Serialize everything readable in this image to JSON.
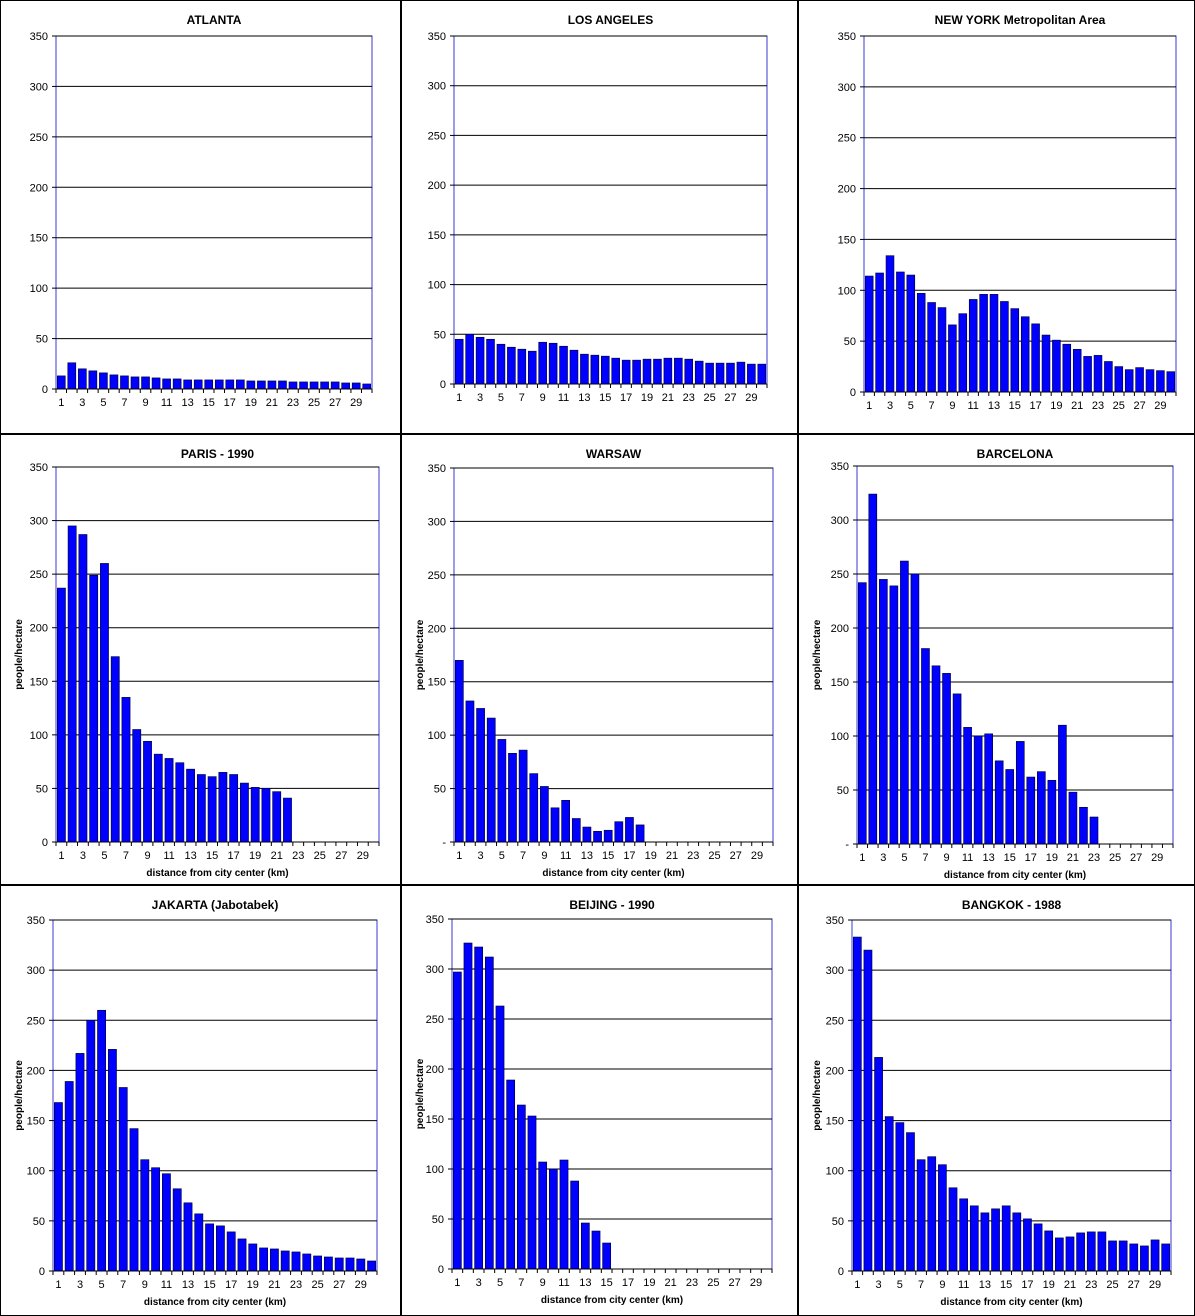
{
  "chart_data": [
    {
      "type": "bar",
      "title": "ATLANTA",
      "xlabel": "",
      "ylabel": "",
      "ylim": [
        0,
        350
      ],
      "yticks": [
        "0",
        "50",
        "100",
        "150",
        "200",
        "250",
        "300",
        "350"
      ],
      "x_tick_labels": [
        "1",
        "3",
        "5",
        "7",
        "9",
        "11",
        "13",
        "15",
        "17",
        "19",
        "21",
        "23",
        "25",
        "27",
        "29"
      ],
      "categories": [
        1,
        2,
        3,
        4,
        5,
        6,
        7,
        8,
        9,
        10,
        11,
        12,
        13,
        14,
        15,
        16,
        17,
        18,
        19,
        20,
        21,
        22,
        23,
        24,
        25,
        26,
        27,
        28,
        29,
        30
      ],
      "values": [
        13,
        26,
        20,
        18,
        16,
        14,
        13,
        12,
        12,
        11,
        10,
        10,
        9,
        9,
        9,
        9,
        9,
        9,
        8,
        8,
        8,
        8,
        7,
        7,
        7,
        7,
        7,
        6,
        6,
        5
      ],
      "bar_color": "#0000ff",
      "grid": true
    },
    {
      "type": "bar",
      "title": "LOS ANGELES",
      "xlabel": "",
      "ylabel": "",
      "ylim": [
        0,
        350
      ],
      "yticks": [
        "0",
        "50",
        "100",
        "150",
        "200",
        "250",
        "300",
        "350"
      ],
      "x_tick_labels": [
        "1",
        "3",
        "5",
        "7",
        "9",
        "11",
        "13",
        "15",
        "17",
        "19",
        "21",
        "23",
        "25",
        "27",
        "29"
      ],
      "categories": [
        1,
        2,
        3,
        4,
        5,
        6,
        7,
        8,
        9,
        10,
        11,
        12,
        13,
        14,
        15,
        16,
        17,
        18,
        19,
        20,
        21,
        22,
        23,
        24,
        25,
        26,
        27,
        28,
        29,
        30
      ],
      "values": [
        45,
        50,
        47,
        45,
        40,
        37,
        35,
        33,
        42,
        41,
        38,
        34,
        30,
        29,
        28,
        26,
        24,
        24,
        25,
        25,
        26,
        26,
        25,
        23,
        21,
        21,
        21,
        22,
        20,
        20
      ],
      "bar_color": "#0000ff",
      "grid": true
    },
    {
      "type": "bar",
      "title": "NEW YORK Metropolitan Area",
      "xlabel": "",
      "ylabel": "",
      "ylim": [
        0,
        350
      ],
      "yticks": [
        "0",
        "50",
        "100",
        "150",
        "200",
        "250",
        "300",
        "350"
      ],
      "x_tick_labels": [
        "1",
        "3",
        "5",
        "7",
        "9",
        "11",
        "13",
        "15",
        "17",
        "19",
        "21",
        "23",
        "25",
        "27",
        "29"
      ],
      "categories": [
        1,
        2,
        3,
        4,
        5,
        6,
        7,
        8,
        9,
        10,
        11,
        12,
        13,
        14,
        15,
        16,
        17,
        18,
        19,
        20,
        21,
        22,
        23,
        24,
        25,
        26,
        27,
        28,
        29,
        30
      ],
      "values": [
        114,
        117,
        134,
        118,
        115,
        97,
        88,
        83,
        66,
        77,
        91,
        96,
        96,
        89,
        82,
        74,
        67,
        56,
        51,
        47,
        42,
        35,
        36,
        30,
        25,
        22,
        24,
        22,
        21,
        20
      ],
      "bar_color": "#0000ff",
      "grid": true
    },
    {
      "type": "bar",
      "title": "PARIS - 1990",
      "xlabel": "distance from city center (km)",
      "ylabel": "people/hectare",
      "ylim": [
        0,
        350
      ],
      "yticks": [
        "0",
        "50",
        "100",
        "150",
        "200",
        "250",
        "300",
        "350"
      ],
      "x_tick_labels": [
        "1",
        "3",
        "5",
        "7",
        "9",
        "11",
        "13",
        "15",
        "17",
        "19",
        "21",
        "23",
        "25",
        "27",
        "29"
      ],
      "categories": [
        1,
        2,
        3,
        4,
        5,
        6,
        7,
        8,
        9,
        10,
        11,
        12,
        13,
        14,
        15,
        16,
        17,
        18,
        19,
        20,
        21,
        22,
        23,
        24,
        25,
        26,
        27,
        28,
        29,
        30
      ],
      "values": [
        237,
        295,
        287,
        249,
        260,
        173,
        135,
        105,
        94,
        82,
        78,
        74,
        68,
        63,
        61,
        65,
        63,
        55,
        51,
        50,
        47,
        41,
        0,
        0,
        0,
        0,
        0,
        0,
        0,
        0
      ],
      "bar_color": "#0000ff",
      "grid": true
    },
    {
      "type": "bar",
      "title": "WARSAW",
      "xlabel": "distance from city center (km)",
      "ylabel": "people/hectare",
      "ylim": [
        0,
        350
      ],
      "yticks": [
        "-",
        "50",
        "100",
        "150",
        "200",
        "250",
        "300",
        "350"
      ],
      "x_tick_labels": [
        "1",
        "3",
        "5",
        "7",
        "9",
        "11",
        "13",
        "15",
        "17",
        "19",
        "21",
        "23",
        "25",
        "27",
        "29"
      ],
      "categories": [
        1,
        2,
        3,
        4,
        5,
        6,
        7,
        8,
        9,
        10,
        11,
        12,
        13,
        14,
        15,
        16,
        17,
        18,
        19,
        20,
        21,
        22,
        23,
        24,
        25,
        26,
        27,
        28,
        29,
        30
      ],
      "values": [
        170,
        132,
        125,
        116,
        96,
        83,
        86,
        64,
        52,
        32,
        39,
        22,
        14,
        10,
        11,
        19,
        23,
        16,
        0,
        0,
        0,
        0,
        0,
        0,
        0,
        0,
        0,
        0,
        0,
        0
      ],
      "bar_color": "#0000ff",
      "grid": true
    },
    {
      "type": "bar",
      "title": "BARCELONA",
      "xlabel": "distance from city center (km)",
      "ylabel": "people/hectare",
      "ylim": [
        0,
        350
      ],
      "yticks": [
        "-",
        "50",
        "100",
        "150",
        "200",
        "250",
        "300",
        "350"
      ],
      "x_tick_labels": [
        "1",
        "3",
        "5",
        "7",
        "9",
        "11",
        "13",
        "15",
        "17",
        "19",
        "21",
        "23",
        "25",
        "27",
        "29"
      ],
      "categories": [
        1,
        2,
        3,
        4,
        5,
        6,
        7,
        8,
        9,
        10,
        11,
        12,
        13,
        14,
        15,
        16,
        17,
        18,
        19,
        20,
        21,
        22,
        23,
        24,
        25,
        26,
        27,
        28,
        29,
        30
      ],
      "values": [
        242,
        324,
        245,
        239,
        262,
        250,
        181,
        165,
        158,
        139,
        108,
        100,
        102,
        77,
        69,
        95,
        62,
        67,
        59,
        110,
        48,
        34,
        25,
        0,
        0,
        0,
        0,
        0,
        0,
        0
      ],
      "bar_color": "#0000ff",
      "grid": true
    },
    {
      "type": "bar",
      "title": "JAKARTA (Jabotabek)",
      "xlabel": "distance from city center (km)",
      "ylabel": "people/hectare",
      "ylim": [
        0,
        350
      ],
      "yticks": [
        "0",
        "50",
        "100",
        "150",
        "200",
        "250",
        "300",
        "350"
      ],
      "x_tick_labels": [
        "1",
        "3",
        "5",
        "7",
        "9",
        "11",
        "13",
        "15",
        "17",
        "19",
        "21",
        "23",
        "25",
        "27",
        "29"
      ],
      "categories": [
        1,
        2,
        3,
        4,
        5,
        6,
        7,
        8,
        9,
        10,
        11,
        12,
        13,
        14,
        15,
        16,
        17,
        18,
        19,
        20,
        21,
        22,
        23,
        24,
        25,
        26,
        27,
        28,
        29,
        30
      ],
      "values": [
        168,
        189,
        217,
        250,
        260,
        221,
        183,
        142,
        111,
        103,
        97,
        82,
        68,
        57,
        47,
        45,
        39,
        32,
        27,
        23,
        22,
        20,
        19,
        17,
        15,
        14,
        13,
        13,
        12,
        10
      ],
      "bar_color": "#0000ff",
      "grid": true
    },
    {
      "type": "bar",
      "title": "BEIJING - 1990",
      "xlabel": "distance from city center (km)",
      "ylabel": "people/hectare",
      "ylim": [
        0,
        350
      ],
      "yticks": [
        "0",
        "50",
        "100",
        "150",
        "200",
        "250",
        "300",
        "350"
      ],
      "x_tick_labels": [
        "1",
        "3",
        "5",
        "7",
        "9",
        "11",
        "13",
        "15",
        "17",
        "19",
        "21",
        "23",
        "25",
        "27",
        "29"
      ],
      "categories": [
        1,
        2,
        3,
        4,
        5,
        6,
        7,
        8,
        9,
        10,
        11,
        12,
        13,
        14,
        15,
        16,
        17,
        18,
        19,
        20,
        21,
        22,
        23,
        24,
        25,
        26,
        27,
        28,
        29,
        30
      ],
      "values": [
        297,
        326,
        322,
        312,
        263,
        189,
        164,
        153,
        107,
        100,
        109,
        88,
        46,
        38,
        26,
        0,
        0,
        0,
        0,
        0,
        0,
        0,
        0,
        0,
        0,
        0,
        0,
        0,
        0,
        0
      ],
      "bar_color": "#0000ff",
      "grid": true
    },
    {
      "type": "bar",
      "title": "BANGKOK - 1988",
      "xlabel": "distance from city center (km)",
      "ylabel": "people/hectare",
      "ylim": [
        0,
        350
      ],
      "yticks": [
        "0",
        "50",
        "100",
        "150",
        "200",
        "250",
        "300",
        "350"
      ],
      "x_tick_labels": [
        "1",
        "3",
        "5",
        "7",
        "9",
        "11",
        "13",
        "15",
        "17",
        "19",
        "21",
        "23",
        "25",
        "27",
        "29"
      ],
      "categories": [
        1,
        2,
        3,
        4,
        5,
        6,
        7,
        8,
        9,
        10,
        11,
        12,
        13,
        14,
        15,
        16,
        17,
        18,
        19,
        20,
        21,
        22,
        23,
        24,
        25,
        26,
        27,
        28,
        29,
        30
      ],
      "values": [
        333,
        320,
        213,
        154,
        148,
        138,
        111,
        114,
        106,
        83,
        72,
        65,
        58,
        62,
        65,
        58,
        52,
        47,
        40,
        33,
        34,
        38,
        39,
        39,
        30,
        30,
        27,
        25,
        31,
        27
      ],
      "bar_color": "#0000ff",
      "grid": true
    }
  ]
}
